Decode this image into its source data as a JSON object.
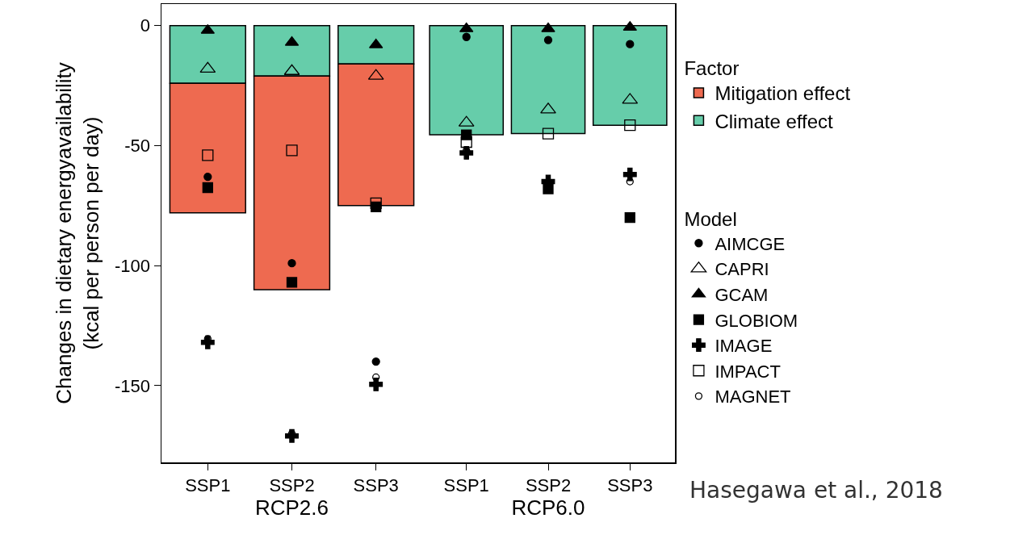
{
  "chart_data": [
    {
      "type": "bar",
      "stacked": true,
      "xlabel": "RCP2.6",
      "ylabel": "Changes in dietary energyavailability\n(kcal per person per day)",
      "categories": [
        "SSP1",
        "SSP2",
        "SSP3"
      ],
      "ylim": [
        -182,
        9
      ],
      "yticks": [
        0,
        -50,
        -100,
        -150
      ],
      "grid": false,
      "legend": false,
      "series": [
        {
          "color": "#66cdaa",
          "values": [
            -24,
            -21,
            -16
          ]
        },
        {
          "color": "#ee6a50",
          "values": [
            -54,
            -89,
            -59
          ]
        },
        {
          "type": "scatter",
          "marker": "circle",
          "color": "#000000",
          "values": [
            -63,
            -99,
            -140
          ]
        },
        {
          "type": "scatter",
          "marker": "triangle-open",
          "color": "#000000",
          "values": [
            -18,
            -19,
            -21
          ]
        },
        {
          "type": "scatter",
          "marker": "triangle",
          "color": "#000000",
          "values": [
            -2,
            -7,
            -8
          ]
        },
        {
          "type": "scatter",
          "marker": "square",
          "color": "#000000",
          "values": [
            -67.5,
            -107,
            -75.5
          ]
        },
        {
          "type": "scatter",
          "marker": "cross",
          "color": "#000000",
          "values": [
            -132,
            -171,
            -149.5
          ]
        },
        {
          "type": "scatter",
          "marker": "square-open",
          "color": "#000000",
          "values": [
            -54,
            -52,
            -74
          ]
        },
        {
          "type": "scatter",
          "marker": "circle-open",
          "color": "#000000",
          "values": [
            -130.5,
            -170,
            -146.5
          ]
        }
      ]
    },
    {
      "type": "bar",
      "stacked": true,
      "xlabel": "RCP6.0",
      "categories": [
        "SSP1",
        "SSP2",
        "SSP3"
      ],
      "ylim": [
        -182,
        9
      ],
      "yticks": [
        0,
        -50,
        -100,
        -150
      ],
      "tick_labels": "x",
      "grid": false,
      "legend": "right",
      "legend_title": [
        "Factor",
        "Model"
      ],
      "annotations": [
        "Hasegawa et al., 2018"
      ],
      "series": [
        {
          "name": "Climate effect",
          "color": "#66cdaa",
          "values": [
            -45.5,
            -45,
            -41.5
          ]
        },
        {
          "name": "Mitigation effect",
          "color": "#ee6a50",
          "values": [
            null,
            null,
            null
          ]
        },
        {
          "name": "AIMCGE",
          "type": "scatter",
          "marker": "circle",
          "color": "#000000",
          "values": [
            -4.7,
            -6,
            -7.7
          ]
        },
        {
          "name": "CAPRI",
          "type": "scatter",
          "marker": "triangle-open",
          "color": "#000000",
          "values": [
            -40.5,
            -35,
            -31
          ]
        },
        {
          "name": "GCAM",
          "type": "scatter",
          "marker": "triangle",
          "color": "#000000",
          "values": [
            -1.3,
            -1.3,
            -0.7
          ]
        },
        {
          "name": "GLOBIOM",
          "type": "scatter",
          "marker": "square",
          "color": "#000000",
          "values": [
            -45.5,
            -68,
            -80
          ]
        },
        {
          "name": "IMAGE",
          "type": "scatter",
          "marker": "cross",
          "color": "#000000",
          "values": [
            -53,
            -65,
            -62
          ]
        },
        {
          "name": "IMPACT",
          "type": "scatter",
          "marker": "square-open",
          "color": "#000000",
          "values": [
            -48.5,
            -45,
            -41.5
          ]
        },
        {
          "name": "MAGNET",
          "type": "scatter",
          "marker": "circle-open",
          "color": "#000000",
          "values": [
            -52,
            null,
            -65
          ]
        }
      ]
    }
  ]
}
